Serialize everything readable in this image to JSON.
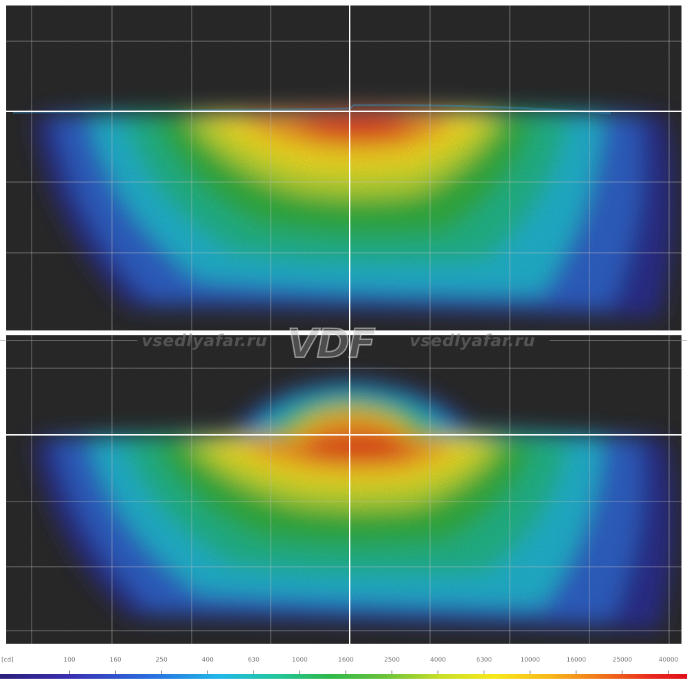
{
  "chart_data": [
    {
      "type": "heatmap",
      "panel": "top",
      "description_scale": "cd",
      "peak_region": "red hotspot just left of the vertical center line, directly below the horizontal cutoff line",
      "cutoff": "flat horizontal cutoff with small step just right of the vertical axis"
    },
    {
      "type": "heatmap",
      "panel": "bottom",
      "peak_region": "red hotspot just left of the vertical center line, directly below the horizontal line",
      "cutoff": "raised central hump of light above the horizontal line"
    }
  ],
  "scale": {
    "unit": "[cd]",
    "ticks": [
      "100",
      "160",
      "250",
      "400",
      "630",
      "1000",
      "1600",
      "2500",
      "4000",
      "6300",
      "10000",
      "16000",
      "25000",
      "40000"
    ]
  },
  "watermark": {
    "left_text": "vsedlyafar.ru",
    "logo_text": "VDF",
    "right_text": "vsedlyafar.ru"
  }
}
